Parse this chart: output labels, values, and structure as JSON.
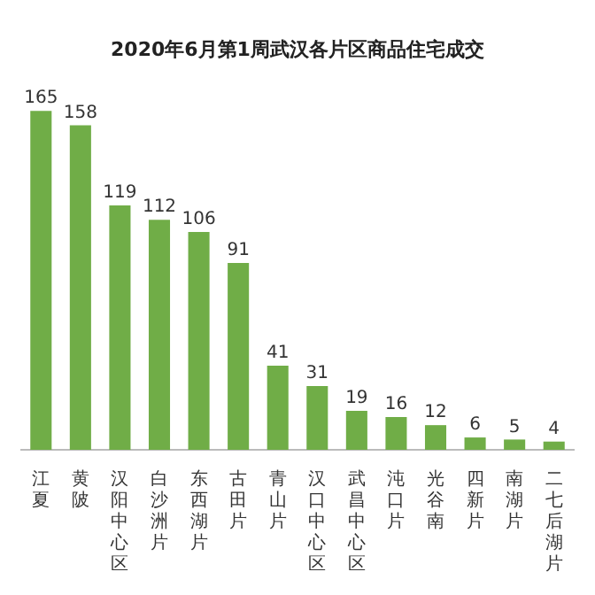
{
  "chart_data": {
    "type": "bar",
    "title": "2020年6月第1周武汉各片区商品住宅成交",
    "categories": [
      "江夏",
      "黄陂",
      "汉阳中心区",
      "白沙洲片",
      "东西湖片",
      "古田片",
      "青山片",
      "汉口中心区",
      "武昌中心区",
      "沌口片",
      "光谷南",
      "四新片",
      "南湖片",
      "二七后湖片"
    ],
    "values": [
      165,
      158,
      119,
      112,
      106,
      91,
      41,
      31,
      19,
      16,
      12,
      6,
      5,
      4
    ],
    "color": "#70ad47",
    "data_labels": true
  }
}
